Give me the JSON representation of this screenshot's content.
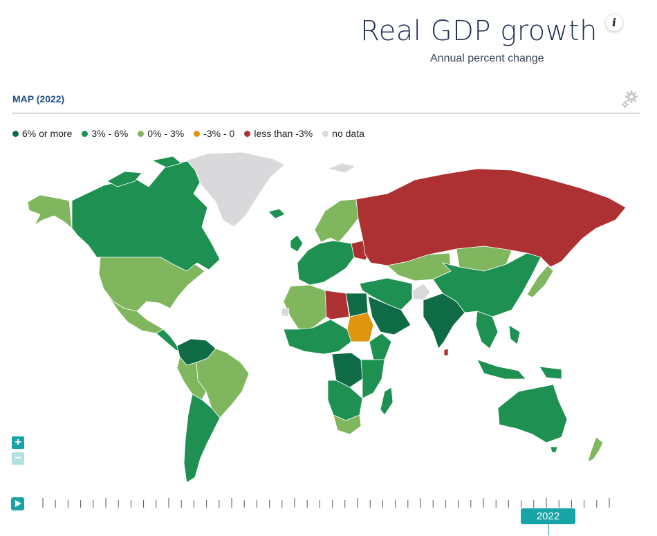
{
  "header": {
    "title": "Real GDP growth",
    "subtitle": "Annual percent change",
    "info_glyph": "i"
  },
  "panel": {
    "label": "MAP (2022)",
    "settings_icon": "gear-icon"
  },
  "legend": [
    {
      "label": "6% or more",
      "color": "#0e6b45"
    },
    {
      "label": "3% - 6%",
      "color": "#1e9152"
    },
    {
      "label": "0% - 3%",
      "color": "#80b65e"
    },
    {
      "label": "-3% - 0",
      "color": "#e0950f"
    },
    {
      "label": "less than -3%",
      "color": "#ad3133"
    },
    {
      "label": "no data",
      "color": "#d9d9db"
    }
  ],
  "map": {
    "regions": [
      {
        "name": "Alaska",
        "category": "0% - 3%"
      },
      {
        "name": "Canada",
        "category": "3% - 6%"
      },
      {
        "name": "Greenland",
        "category": "no data"
      },
      {
        "name": "United States",
        "category": "0% - 3%"
      },
      {
        "name": "Mexico",
        "category": "0% - 3%"
      },
      {
        "name": "Central America",
        "category": "3% - 6%"
      },
      {
        "name": "Venezuela and Colombia",
        "category": "6% or more"
      },
      {
        "name": "Brazil",
        "category": "0% - 3%"
      },
      {
        "name": "Argentina",
        "category": "3% - 6%"
      },
      {
        "name": "Peru and Bolivia",
        "category": "0% - 3%"
      },
      {
        "name": "Europe",
        "category": "3% - 6%"
      },
      {
        "name": "Russia",
        "category": "less than -3%"
      },
      {
        "name": "Ukraine",
        "category": "less than -3%"
      },
      {
        "name": "Libya",
        "category": "less than -3%"
      },
      {
        "name": "Sudan",
        "category": "-3% - 0"
      },
      {
        "name": "Egypt",
        "category": "6% or more"
      },
      {
        "name": "Saudi Arabia",
        "category": "6% or more"
      },
      {
        "name": "India",
        "category": "6% or more"
      },
      {
        "name": "China",
        "category": "3% - 6%"
      },
      {
        "name": "Mongolia",
        "category": "0% - 3%"
      },
      {
        "name": "Kazakhstan",
        "category": "0% - 3%"
      },
      {
        "name": "Afghanistan",
        "category": "no data"
      },
      {
        "name": "Japan",
        "category": "0% - 3%"
      },
      {
        "name": "Australia",
        "category": "3% - 6%"
      },
      {
        "name": "New Zealand",
        "category": "0% - 3%"
      },
      {
        "name": "South Africa",
        "category": "0% - 3%"
      },
      {
        "name": "DR Congo",
        "category": "6% or more"
      },
      {
        "name": "Southeast Asia",
        "category": "3% - 6%"
      }
    ]
  },
  "controls": {
    "zoom_in": "+",
    "zoom_out": "−"
  },
  "timeline": {
    "selected_year": "2022",
    "play_icon": "play-icon"
  }
}
